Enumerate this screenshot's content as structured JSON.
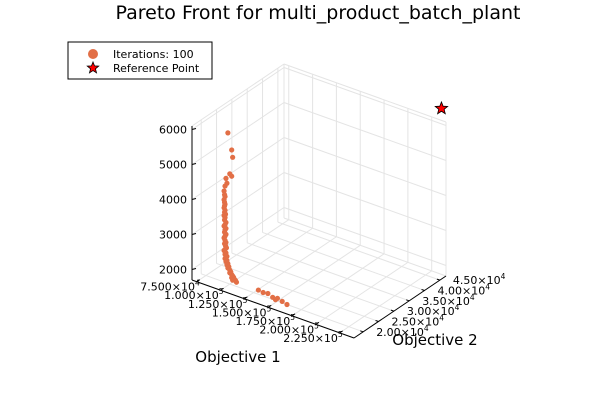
{
  "chart_data": {
    "type": "scatter",
    "title": "Pareto Front for multi_product_batch_plant",
    "xlabel": "Objective 1",
    "ylabel": "Objective 2",
    "zlabel": "",
    "xlim": [
      70000,
      240000
    ],
    "ylim": [
      17000,
      47000
    ],
    "zlim": [
      1700,
      6100
    ],
    "x_ticks": [
      {
        "mant": "7.500",
        "exp": "4",
        "value": 75000
      },
      {
        "mant": "1.000",
        "exp": "5",
        "value": 100000
      },
      {
        "mant": "1.250",
        "exp": "5",
        "value": 125000
      },
      {
        "mant": "1.500",
        "exp": "5",
        "value": 150000
      },
      {
        "mant": "1.750",
        "exp": "5",
        "value": 175000
      },
      {
        "mant": "2.000",
        "exp": "5",
        "value": 200000
      },
      {
        "mant": "2.250",
        "exp": "5",
        "value": 225000
      }
    ],
    "y_ticks": [
      {
        "mant": "2.00",
        "exp": "4",
        "value": 20000
      },
      {
        "mant": "2.50",
        "exp": "4",
        "value": 25000
      },
      {
        "mant": "3.00",
        "exp": "4",
        "value": 30000
      },
      {
        "mant": "3.50",
        "exp": "4",
        "value": 35000
      },
      {
        "mant": "4.00",
        "exp": "4",
        "value": 40000
      },
      {
        "mant": "4.50",
        "exp": "4",
        "value": 45000
      }
    ],
    "z_ticks": [
      {
        "label": "2000",
        "value": 2000
      },
      {
        "label": "3000",
        "value": 3000
      },
      {
        "label": "4000",
        "value": 4000
      },
      {
        "label": "5000",
        "value": 5000
      },
      {
        "label": "6000",
        "value": 6000
      }
    ],
    "grid": true,
    "legend_position": "top-left",
    "series": [
      {
        "name": "Iterations: 100",
        "marker": "circle",
        "color": "#e26f46",
        "points": [
          [
            98000,
            20000,
            6000
          ],
          [
            102000,
            20000,
            5550
          ],
          [
            103000,
            20000,
            5350
          ],
          [
            100000,
            20000,
            4850
          ],
          [
            102000,
            20000,
            4800
          ],
          [
            96000,
            20000,
            4680
          ],
          [
            97000,
            20000,
            4550
          ],
          [
            95000,
            20000,
            4450
          ],
          [
            94000,
            20000,
            4300
          ],
          [
            94500,
            20000,
            4200
          ],
          [
            95000,
            20000,
            4150
          ],
          [
            94000,
            20000,
            4050
          ],
          [
            94500,
            20000,
            3980
          ],
          [
            95000,
            20000,
            3930
          ],
          [
            94500,
            20000,
            3880
          ],
          [
            94000,
            20000,
            3820
          ],
          [
            95000,
            20000,
            3760
          ],
          [
            94500,
            20000,
            3700
          ],
          [
            95500,
            20000,
            3650
          ],
          [
            94000,
            20000,
            3600
          ],
          [
            95000,
            20000,
            3550
          ],
          [
            94500,
            20000,
            3480
          ],
          [
            96000,
            20000,
            3420
          ],
          [
            95000,
            20000,
            3350
          ],
          [
            94000,
            20000,
            3300
          ],
          [
            96000,
            20000,
            3250
          ],
          [
            95000,
            20000,
            3200
          ],
          [
            94500,
            20000,
            3130
          ],
          [
            96000,
            20000,
            3080
          ],
          [
            95000,
            20000,
            3020
          ],
          [
            94000,
            20000,
            2960
          ],
          [
            95000,
            20000,
            2900
          ],
          [
            96000,
            20000,
            2850
          ],
          [
            94500,
            20000,
            2800
          ],
          [
            95500,
            20000,
            2750
          ],
          [
            96500,
            20000,
            2700
          ],
          [
            95000,
            20000,
            2640
          ],
          [
            94000,
            20000,
            2600
          ],
          [
            96000,
            20000,
            2550
          ],
          [
            95000,
            20000,
            2500
          ],
          [
            97000,
            20000,
            2460
          ],
          [
            96000,
            20000,
            2420
          ],
          [
            95000,
            20000,
            2380
          ],
          [
            97000,
            20000,
            2340
          ],
          [
            96000,
            20000,
            2300
          ],
          [
            98000,
            20000,
            2260
          ],
          [
            97000,
            20000,
            2220
          ],
          [
            99000,
            20000,
            2180
          ],
          [
            98000,
            20000,
            2140
          ],
          [
            100000,
            20000,
            2100
          ],
          [
            101000,
            20000,
            2060
          ],
          [
            100000,
            20000,
            2020
          ],
          [
            102000,
            20000,
            1990
          ],
          [
            103000,
            20000,
            1960
          ],
          [
            104000,
            20000,
            1930
          ],
          [
            102000,
            20000,
            1900
          ],
          [
            105000,
            20000,
            1880
          ],
          [
            106000,
            20000,
            1860
          ],
          [
            103000,
            20000,
            1840
          ],
          [
            107000,
            20000,
            1820
          ],
          [
            130000,
            20000,
            1820
          ],
          [
            135000,
            20000,
            1800
          ],
          [
            140000,
            20000,
            1820
          ],
          [
            150000,
            20000,
            1780
          ],
          [
            145000,
            20000,
            1760
          ],
          [
            155000,
            20000,
            1740
          ],
          [
            148000,
            20000,
            1720
          ],
          [
            160000,
            20000,
            1700
          ]
        ]
      },
      {
        "name": "Reference Point",
        "marker": "star",
        "color": "#ff0000",
        "points": [
          [
            232000,
            48000,
            6350
          ]
        ]
      }
    ]
  }
}
